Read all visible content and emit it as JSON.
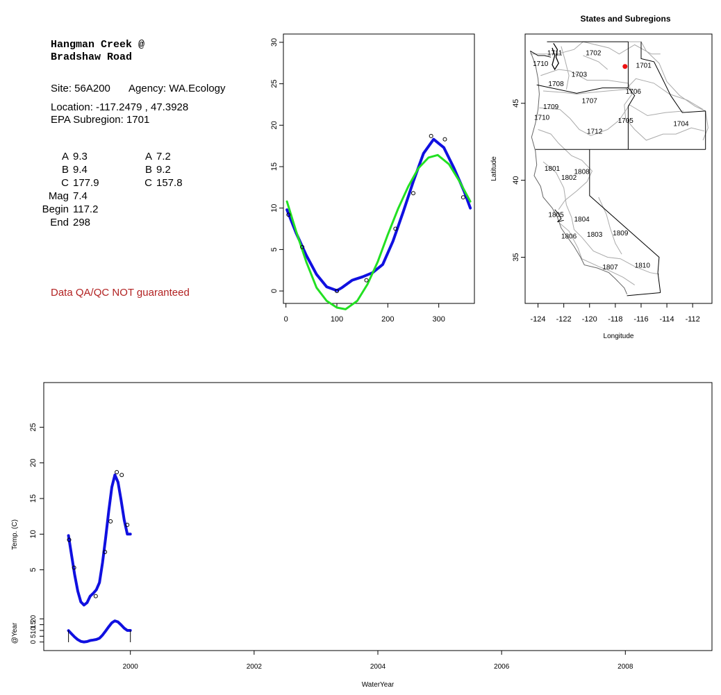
{
  "site_info": {
    "title_line1": "Hangman Creek @",
    "title_line2": "Bradshaw Road",
    "site_label": "Site: 56A200",
    "agency_label": "Agency: WA.Ecology",
    "location_label": "Location: -117.2479 , 47.3928",
    "subregion_label": "EPA Subregion: 1701",
    "params": [
      {
        "name": "A",
        "value1": "9.3",
        "name2": "A",
        "value2": "7.2"
      },
      {
        "name": "B",
        "value1": "9.4",
        "name2": "B",
        "value2": "9.2"
      },
      {
        "name": "C",
        "value1": "177.9",
        "name2": "C",
        "value2": "157.8"
      },
      {
        "name": "Mag",
        "value1": "7.4",
        "name2": "",
        "value2": ""
      },
      {
        "name": "Begin",
        "value1": "117.2",
        "name2": "",
        "value2": ""
      },
      {
        "name": "End",
        "value1": "298",
        "name2": "",
        "value2": ""
      }
    ],
    "qa_note": "Data QA/QC NOT guaranteed"
  },
  "colors": {
    "observed": "#000000",
    "smooth": "#1010e0",
    "sine_fit": "#22e022",
    "site_marker": "#ee1111",
    "boundary": "#aaaaaa"
  },
  "chart_data": [
    {
      "type": "scatter",
      "title": "",
      "xlabel": "",
      "ylabel": "",
      "xlim": [
        -5,
        370
      ],
      "ylim": [
        -1.5,
        31
      ],
      "xticks": [
        0,
        100,
        200,
        300
      ],
      "yticks": [
        0,
        5,
        10,
        15,
        20,
        25,
        30
      ],
      "points": [
        {
          "x": 5,
          "y": 9.2
        },
        {
          "x": 32,
          "y": 5.3
        },
        {
          "x": 100,
          "y": 0.0
        },
        {
          "x": 158,
          "y": 1.3
        },
        {
          "x": 215,
          "y": 7.5
        },
        {
          "x": 250,
          "y": 11.8
        },
        {
          "x": 285,
          "y": 18.7
        },
        {
          "x": 312,
          "y": 18.3
        },
        {
          "x": 348,
          "y": 11.3
        }
      ],
      "series": [
        {
          "name": "",
          "style": "smooth",
          "x": [
            2,
            20,
            40,
            60,
            80,
            100,
            110,
            130,
            150,
            170,
            190,
            210,
            230,
            250,
            270,
            290,
            310,
            330,
            350,
            362
          ],
          "y": [
            9.8,
            7.0,
            4.3,
            2.0,
            0.5,
            0.05,
            0.4,
            1.3,
            1.7,
            2.2,
            3.2,
            6.0,
            9.5,
            13.2,
            16.6,
            18.3,
            17.3,
            14.8,
            12.0,
            10.0
          ]
        },
        {
          "name": "",
          "style": "sine",
          "x": [
            2,
            20,
            40,
            60,
            80,
            100,
            117,
            140,
            160,
            180,
            200,
            220,
            240,
            260,
            280,
            298,
            320,
            340,
            362
          ],
          "y": [
            10.8,
            7.2,
            3.5,
            0.4,
            -1.2,
            -2.0,
            -2.2,
            -1.2,
            0.8,
            3.5,
            6.8,
            9.9,
            12.6,
            14.8,
            16.1,
            16.4,
            15.3,
            13.3,
            10.8
          ]
        }
      ]
    },
    {
      "type": "map",
      "title": "States and Subregions",
      "xlabel": "Longitude",
      "ylabel": "Latitude",
      "xlim": [
        -125,
        -110.5
      ],
      "ylim": [
        32,
        49.5
      ],
      "xticks": [
        -124,
        -122,
        -120,
        -118,
        -116,
        -114,
        -112
      ],
      "yticks": [
        35,
        40,
        45
      ],
      "site": {
        "lon": -117.2479,
        "lat": 47.3928
      },
      "regions": [
        {
          "label": "1711",
          "lon": -122.7,
          "lat": 48.3
        },
        {
          "label": "1702",
          "lon": -119.7,
          "lat": 48.3
        },
        {
          "label": "1710",
          "lon": -123.8,
          "lat": 47.6
        },
        {
          "label": "1701",
          "lon": -115.8,
          "lat": 47.5
        },
        {
          "label": "1703",
          "lon": -120.8,
          "lat": 46.9
        },
        {
          "label": "1708",
          "lon": -122.6,
          "lat": 46.3
        },
        {
          "label": "1706",
          "lon": -116.6,
          "lat": 45.8
        },
        {
          "label": "1707",
          "lon": -120.0,
          "lat": 45.2
        },
        {
          "label": "1709",
          "lon": -123.0,
          "lat": 44.8
        },
        {
          "label": "1710",
          "lon": -123.7,
          "lat": 44.1
        },
        {
          "label": "1705",
          "lon": -117.2,
          "lat": 43.9
        },
        {
          "label": "1704",
          "lon": -112.9,
          "lat": 43.7
        },
        {
          "label": "1712",
          "lon": -119.6,
          "lat": 43.2
        },
        {
          "label": "1801",
          "lon": -122.9,
          "lat": 40.8
        },
        {
          "label": "1808",
          "lon": -120.6,
          "lat": 40.6
        },
        {
          "label": "1802",
          "lon": -121.6,
          "lat": 40.2
        },
        {
          "label": "1805",
          "lon": -122.6,
          "lat": 37.8
        },
        {
          "label": "1804",
          "lon": -120.6,
          "lat": 37.5
        },
        {
          "label": "1806",
          "lon": -121.6,
          "lat": 36.4
        },
        {
          "label": "1803",
          "lon": -119.6,
          "lat": 36.5
        },
        {
          "label": "1809",
          "lon": -117.6,
          "lat": 36.6
        },
        {
          "label": "1807",
          "lon": -118.4,
          "lat": 34.4
        },
        {
          "label": "1810",
          "lon": -115.9,
          "lat": 34.5
        }
      ]
    },
    {
      "type": "line",
      "title": "",
      "xlabel": "WaterYear",
      "ylabel": "Temp. (C)",
      "xlim": [
        1998.6,
        2009.4
      ],
      "ylim": [
        0,
        30
      ],
      "xticks": [
        2000,
        2002,
        2004,
        2006,
        2008
      ],
      "yticks": [
        5,
        10,
        15,
        20,
        25
      ],
      "points": [
        {
          "x": 1999.01,
          "y": 9.2
        },
        {
          "x": 1999.09,
          "y": 5.3
        },
        {
          "x": 1999.44,
          "y": 1.3
        },
        {
          "x": 1999.59,
          "y": 7.5
        },
        {
          "x": 1999.68,
          "y": 11.8
        },
        {
          "x": 1999.78,
          "y": 18.7
        },
        {
          "x": 1999.86,
          "y": 18.3
        },
        {
          "x": 1999.95,
          "y": 11.3
        }
      ],
      "series": [
        {
          "name": "",
          "style": "smooth",
          "x": [
            1999.0,
            1999.05,
            1999.1,
            1999.15,
            1999.2,
            1999.25,
            1999.3,
            1999.35,
            1999.4,
            1999.45,
            1999.5,
            1999.55,
            1999.6,
            1999.65,
            1999.7,
            1999.75,
            1999.8,
            1999.85,
            1999.9,
            1999.95,
            2000.0
          ],
          "y": [
            9.8,
            7.0,
            4.3,
            2.0,
            0.5,
            0.05,
            0.4,
            1.3,
            1.7,
            2.2,
            3.2,
            6.0,
            9.5,
            13.2,
            16.6,
            18.3,
            17.3,
            14.8,
            12.0,
            10.0,
            10.0
          ]
        }
      ]
    },
    {
      "type": "line",
      "title": "",
      "xlabel": "",
      "ylabel": "@Year",
      "xlim": [
        1998.6,
        2009.4
      ],
      "ylim": [
        -2,
        31
      ],
      "yticks": [
        0,
        5,
        10,
        15,
        20
      ],
      "ytick_labels": [
        "0",
        "5",
        "10",
        "15",
        "20"
      ],
      "series": [
        {
          "name": "",
          "style": "smooth",
          "x": [
            1999.0,
            1999.05,
            1999.1,
            1999.15,
            1999.2,
            1999.25,
            1999.3,
            1999.35,
            1999.4,
            1999.45,
            1999.5,
            1999.55,
            1999.6,
            1999.65,
            1999.7,
            1999.75,
            1999.8,
            1999.85,
            1999.9,
            1999.95,
            2000.0
          ],
          "y": [
            9.8,
            7.0,
            4.3,
            2.0,
            0.5,
            0.05,
            0.4,
            1.3,
            1.7,
            2.2,
            3.2,
            6.0,
            9.5,
            13.2,
            16.6,
            18.3,
            17.3,
            14.8,
            12.0,
            10.0,
            10.0
          ]
        }
      ],
      "markers": [
        1999.0,
        2000.0
      ]
    }
  ]
}
